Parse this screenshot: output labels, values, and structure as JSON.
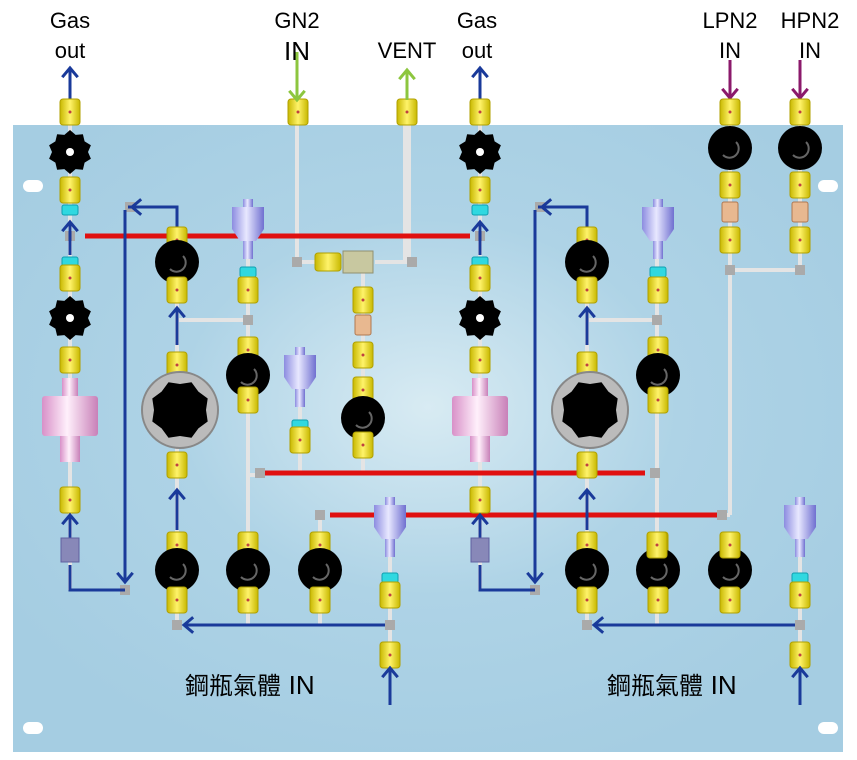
{
  "labels": {
    "gas_out_left": [
      "Gas",
      "out"
    ],
    "gn2_in": [
      "GN2",
      "IN"
    ],
    "vent": "VENT",
    "gas_out_right": [
      "Gas",
      "out"
    ],
    "lpn2_in": [
      "LPN2",
      "IN"
    ],
    "hpn2_in": [
      "HPN2",
      "IN"
    ],
    "cylinder_gas_in_left": {
      "text": "鋼瓶氣體",
      "suffix": "IN"
    },
    "cylinder_gas_in_right": {
      "text": "鋼瓶氣體",
      "suffix": "IN"
    }
  },
  "colors": {
    "panel": "#a8d0e4",
    "flow_arrow": "#1a3a9a",
    "gn2_arrow": "#8dc63f",
    "n2_arrow": "#8b1a6b",
    "heater_line": "#e01010",
    "fitting": "#f0e020",
    "valve": "#000000"
  }
}
